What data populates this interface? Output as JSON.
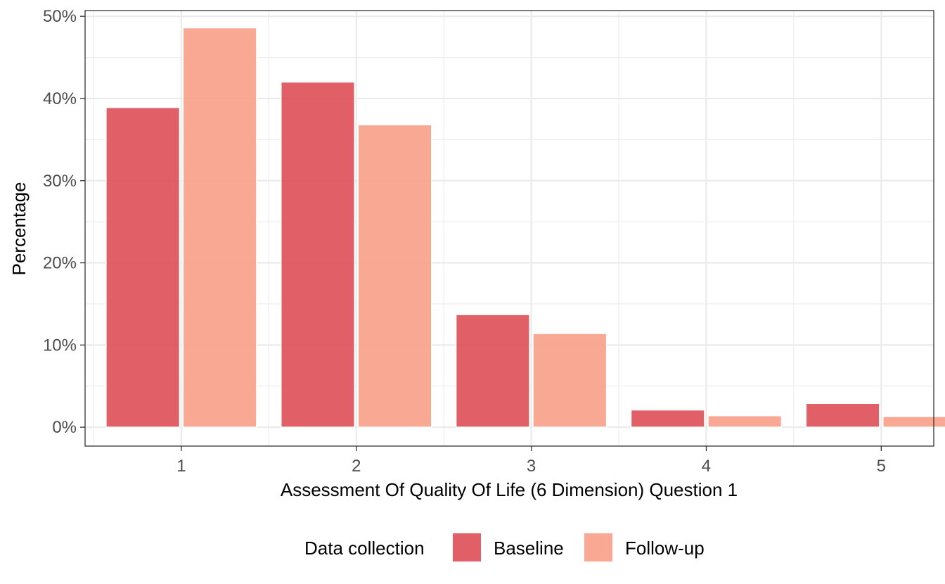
{
  "chart_data": {
    "type": "bar",
    "xlabel": "Assessment Of Quality Of Life (6 Dimension) Question 1",
    "ylabel": "Percentage",
    "categories": [
      "1",
      "2",
      "3",
      "4",
      "5"
    ],
    "series": [
      {
        "name": "Baseline",
        "color": "#de4f56",
        "values": [
          38.9,
          42.0,
          13.7,
          2.1,
          2.9
        ],
        "x_offset": -0.22
      },
      {
        "name": "Follow-up",
        "color": "#f9a38d",
        "values": [
          48.6,
          36.8,
          11.4,
          1.4,
          1.3
        ],
        "x_offset": 0.22
      }
    ],
    "x_range": [
      0.45,
      5.3
    ],
    "ylim": [
      -2.3,
      50.7
    ],
    "yticks": [
      0,
      10,
      20,
      30,
      40,
      50
    ],
    "ytick_labels": [
      "0%",
      "10%",
      "20%",
      "30%",
      "40%",
      "50%"
    ],
    "bar_width": 0.42,
    "grid": true,
    "legend": {
      "title": "Data collection",
      "position": "bottom"
    }
  }
}
